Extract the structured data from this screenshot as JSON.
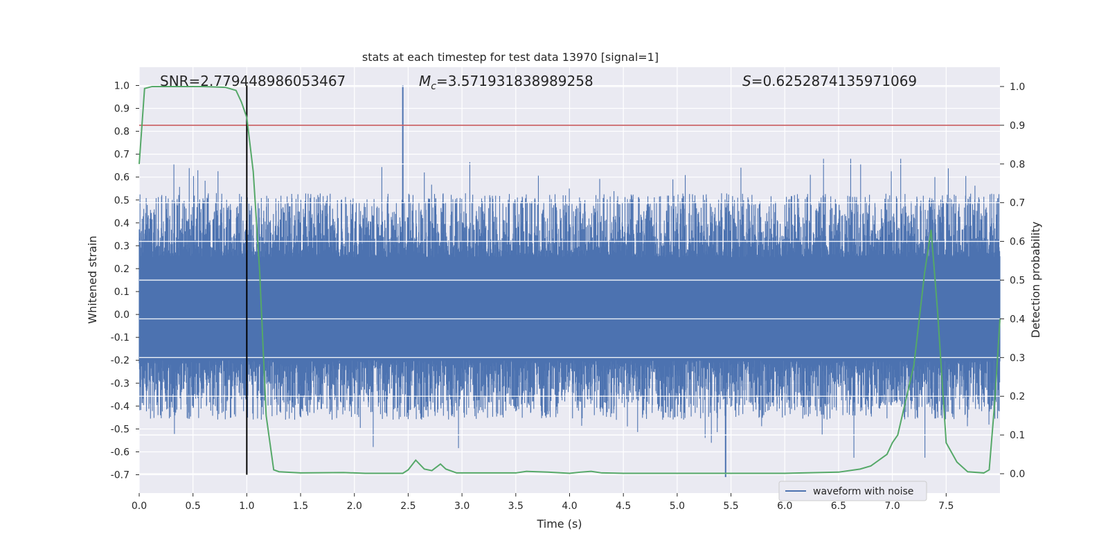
{
  "chart_data": {
    "type": "line",
    "title": "stats at each timestep for test data 13970 [signal=1]",
    "xlabel": "Time (s)",
    "ylabel_left": "Whitened strain",
    "ylabel_right": "Detection probability",
    "xlim": [
      0.0,
      8.0
    ],
    "ylim_left": [
      -0.78,
      1.08
    ],
    "ylim_right": [
      -0.05,
      1.05
    ],
    "x_ticks": [
      "0.0",
      "0.5",
      "1.0",
      "1.5",
      "2.0",
      "2.5",
      "3.0",
      "3.5",
      "4.0",
      "4.5",
      "5.0",
      "5.5",
      "6.0",
      "6.5",
      "7.0",
      "7.5"
    ],
    "y_ticks_left": [
      "1.0",
      "0.9",
      "0.8",
      "0.7",
      "0.6",
      "0.5",
      "0.4",
      "0.3",
      "0.2",
      "0.1",
      "0.0",
      "-0.1",
      "-0.2",
      "-0.3",
      "-0.4",
      "-0.5",
      "-0.6",
      "-0.7"
    ],
    "y_ticks_right": [
      "1.0",
      "0.9",
      "0.8",
      "0.7",
      "0.6",
      "0.5",
      "0.4",
      "0.3",
      "0.2",
      "0.1",
      "0.0"
    ],
    "grid": true,
    "colors": {
      "waveform": "#4c72b0",
      "probability": "#55a868",
      "threshold": "#c44e52",
      "marker": "#000000",
      "background": "#eaeaf2"
    },
    "annotations": {
      "snr": "SNR=2.779448986053467",
      "mc_symbol": "M",
      "mc_subscript": "c",
      "mc_value": "=3.571931838989258",
      "s_symbol": "S",
      "s_value": "=0.6252874135971069"
    },
    "threshold_right": 0.9,
    "vertical_marker_x": 1.0,
    "waveform": {
      "name": "waveform with noise",
      "band_low": -0.2,
      "band_high": 0.25,
      "extreme_max": 1.0,
      "extreme_max_x": 2.45,
      "extreme_min": -0.71,
      "extreme_min_x": 5.45
    },
    "probability_series": {
      "name": "detection probability",
      "x": [
        0.0,
        0.05,
        0.12,
        0.3,
        0.6,
        0.8,
        0.9,
        0.95,
        1.0,
        1.06,
        1.12,
        1.18,
        1.25,
        1.3,
        1.5,
        1.9,
        2.1,
        2.45,
        2.5,
        2.57,
        2.65,
        2.72,
        2.8,
        2.85,
        2.95,
        3.5,
        3.6,
        3.8,
        4.0,
        4.1,
        4.2,
        4.3,
        4.5,
        5.0,
        6.0,
        6.5,
        6.7,
        6.8,
        6.95,
        7.0,
        7.05,
        7.2,
        7.3,
        7.36,
        7.42,
        7.5,
        7.6,
        7.7,
        7.85,
        7.9,
        7.95,
        8.0
      ],
      "y": [
        0.8,
        0.995,
        1.0,
        1.0,
        1.0,
        0.998,
        0.99,
        0.96,
        0.92,
        0.78,
        0.52,
        0.15,
        0.01,
        0.005,
        0.002,
        0.003,
        0.001,
        0.001,
        0.01,
        0.035,
        0.012,
        0.008,
        0.025,
        0.012,
        0.002,
        0.002,
        0.006,
        0.004,
        0.001,
        0.004,
        0.006,
        0.002,
        0.001,
        0.001,
        0.001,
        0.004,
        0.012,
        0.02,
        0.05,
        0.08,
        0.1,
        0.28,
        0.52,
        0.63,
        0.42,
        0.08,
        0.03,
        0.005,
        0.002,
        0.01,
        0.18,
        0.4
      ]
    }
  }
}
